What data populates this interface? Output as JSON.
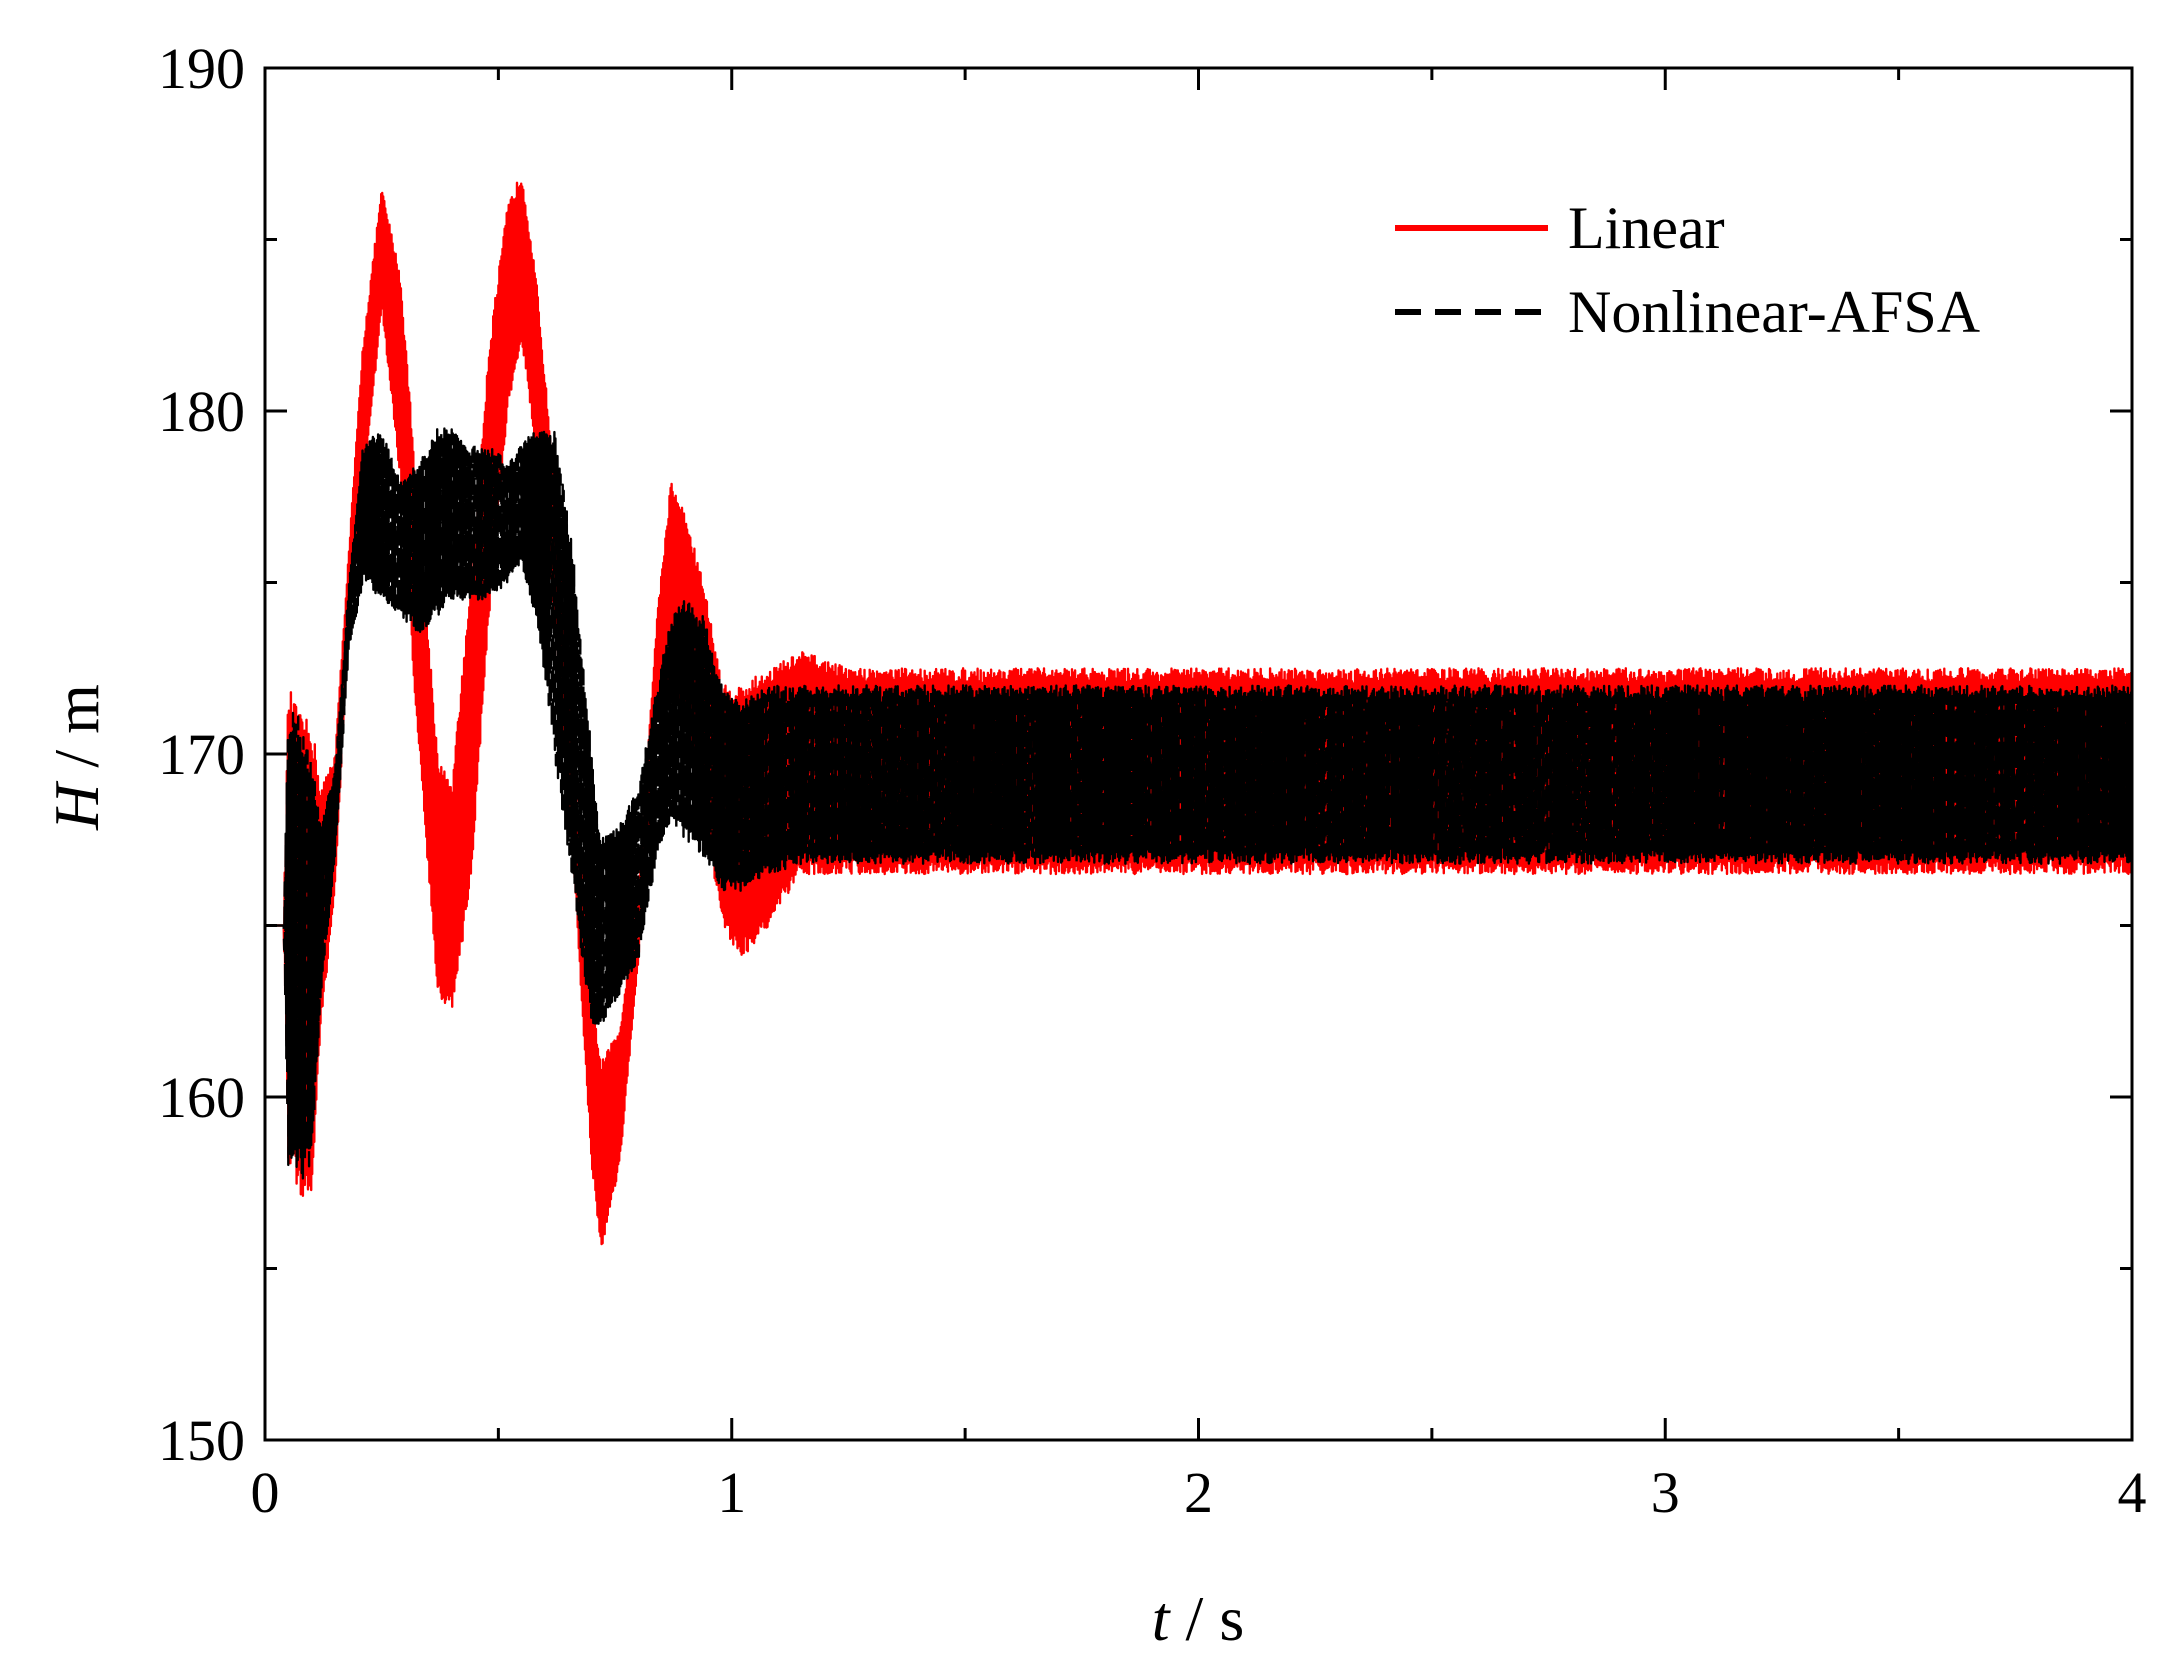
{
  "chart_data": {
    "type": "line",
    "title": "",
    "xlabel": {
      "var": "t",
      "unit": "s",
      "sep": " / "
    },
    "ylabel": {
      "var": "H",
      "unit": "m",
      "sep": " / "
    },
    "xlim": [
      0,
      4
    ],
    "ylim": [
      150,
      190
    ],
    "x_ticks": [
      0,
      1,
      2,
      3,
      4
    ],
    "x_minor_ticks": [
      0.5,
      1.5,
      2.5,
      3.5
    ],
    "y_ticks": [
      150,
      160,
      170,
      180,
      190
    ],
    "y_minor_ticks": [
      155,
      165,
      175,
      185
    ],
    "grid": false,
    "legend_position": "top-right",
    "series": [
      {
        "name": "Linear",
        "color": "#ff0000",
        "style": "solid",
        "envelope": {
          "t": [
            0,
            0.04,
            0.05,
            0.08,
            0.1,
            0.12,
            0.15,
            0.18,
            0.21,
            0.25,
            0.29,
            0.33,
            0.37,
            0.4,
            0.44,
            0.48,
            0.52,
            0.55,
            0.58,
            0.62,
            0.66,
            0.7,
            0.72,
            0.76,
            0.8,
            0.84,
            0.87,
            0.9,
            0.94,
            0.98,
            1.02,
            1.08,
            1.15,
            1.25,
            1.4,
            1.6,
            2.0,
            2.5,
            3.0,
            3.5,
            4.0
          ],
          "upper": [
            165,
            165,
            172,
            171,
            171,
            169,
            170,
            176,
            182,
            186.5,
            184,
            177,
            170,
            169,
            175,
            182,
            186,
            187,
            184,
            178,
            170,
            163,
            161,
            162,
            166,
            174,
            178,
            177,
            175,
            172,
            172,
            172.5,
            173,
            172.5,
            172.5,
            172.5,
            172.5,
            172.5,
            172.5,
            172.5,
            172.5
          ],
          "lower": [
            165,
            165,
            158,
            157,
            157,
            162,
            166,
            174,
            177.5,
            183,
            178,
            170,
            163,
            162.5,
            166,
            174,
            180,
            182,
            179,
            174,
            167,
            158,
            155.5,
            158,
            164,
            171,
            172,
            171,
            168,
            165,
            164,
            165,
            166.5,
            166.5,
            166.5,
            166.5,
            166.5,
            166.5,
            166.5,
            166.5,
            166.5
          ]
        }
      },
      {
        "name": "Nonlinear-AFSA",
        "color": "#000000",
        "style": "dashed",
        "envelope": {
          "t": [
            0,
            0.04,
            0.05,
            0.08,
            0.1,
            0.12,
            0.15,
            0.18,
            0.21,
            0.25,
            0.29,
            0.33,
            0.37,
            0.4,
            0.44,
            0.48,
            0.52,
            0.55,
            0.58,
            0.62,
            0.66,
            0.7,
            0.72,
            0.76,
            0.8,
            0.84,
            0.87,
            0.9,
            0.94,
            0.98,
            1.02,
            1.08,
            1.15,
            1.25,
            1.4,
            1.6,
            2.0,
            2.5,
            3.0,
            3.5,
            4.0
          ],
          "upper": [
            165,
            165,
            171.5,
            171,
            170,
            168,
            169.5,
            175,
            179,
            179.5,
            178,
            178.5,
            179.5,
            179.5,
            179,
            179,
            178.5,
            179,
            179.5,
            179.5,
            176,
            170,
            167.5,
            168,
            169,
            172,
            174,
            174.5,
            174,
            172,
            171.5,
            172,
            172,
            172,
            172,
            172,
            172,
            172,
            172,
            172,
            172
          ],
          "lower": [
            165,
            165,
            158,
            157.5,
            158,
            163,
            167,
            173,
            175,
            174.5,
            174,
            173.5,
            174,
            174.5,
            174.5,
            174.5,
            175,
            175.5,
            174,
            170,
            166,
            162,
            162,
            163,
            164,
            167,
            168,
            167.5,
            167,
            166,
            166,
            166.5,
            166.8,
            166.8,
            166.8,
            166.8,
            166.8,
            166.8,
            166.8,
            166.8,
            166.8
          ]
        }
      }
    ]
  }
}
